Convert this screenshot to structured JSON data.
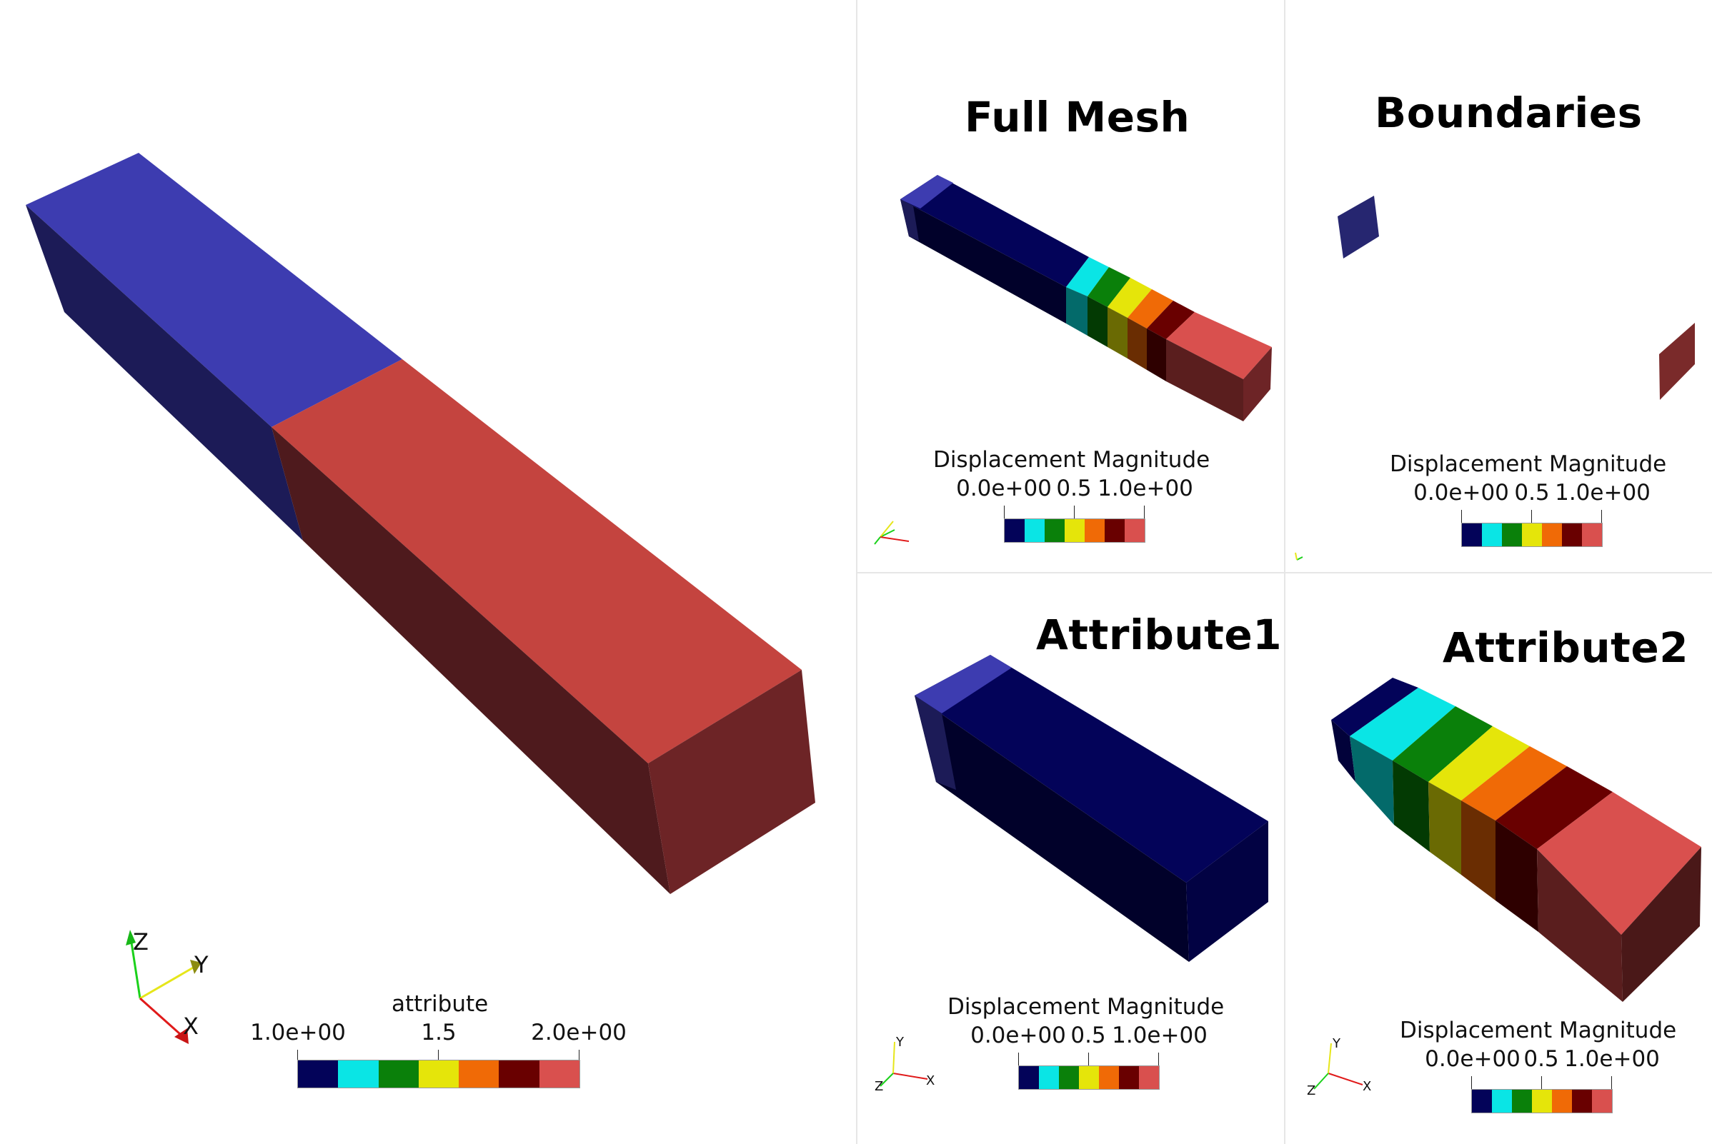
{
  "colormap": [
    "#030359",
    "#0ae5e5",
    "#0a800a",
    "#e5e50a",
    "#f06a06",
    "#690000",
    "#d9504e"
  ],
  "views": {
    "main": {
      "colorbar": {
        "title": "attribute",
        "ticks": [
          "1.0e+00",
          "1.5",
          "2.0e+00"
        ]
      },
      "axes": {
        "x": "X",
        "y": "Y",
        "z": "Z"
      }
    },
    "full_mesh": {
      "title": "Full Mesh",
      "colorbar": {
        "title": "Displacement Magnitude",
        "ticks": [
          "0.0e+00",
          "0.5",
          "1.0e+00"
        ]
      }
    },
    "boundaries": {
      "title": "Boundaries",
      "colorbar": {
        "title": "Displacement Magnitude",
        "ticks": [
          "0.0e+00",
          "0.5",
          "1.0e+00"
        ]
      }
    },
    "attribute1": {
      "title": "Attribute1",
      "colorbar": {
        "title": "Displacement Magnitude",
        "ticks": [
          "0.0e+00",
          "0.5",
          "1.0e+00"
        ]
      },
      "axes": {
        "x": "X",
        "y": "Y",
        "z": "Z"
      }
    },
    "attribute2": {
      "title": "Attribute2",
      "colorbar": {
        "title": "Displacement Magnitude",
        "ticks": [
          "0.0e+00",
          "0.5",
          "1.0e+00"
        ]
      },
      "axes": {
        "x": "X",
        "y": "Y",
        "z": "Z"
      }
    }
  }
}
